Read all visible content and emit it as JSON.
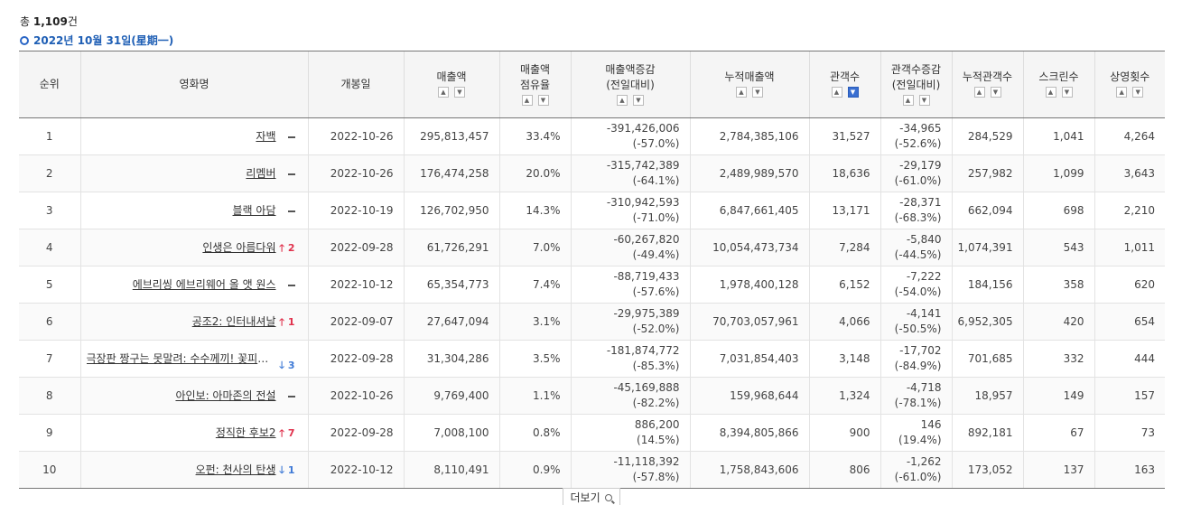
{
  "summary": {
    "prefix": "총 ",
    "count": "1,109",
    "suffix": "건"
  },
  "date": "2022년 10월 31일(星期一)",
  "headers": [
    {
      "label": "순위",
      "sort": false
    },
    {
      "label": "영화명",
      "sort": false
    },
    {
      "label": "개봉일",
      "sort": false
    },
    {
      "label": "매출액",
      "sort": true
    },
    {
      "label": "매출액\n점유율",
      "sort": true
    },
    {
      "label": "매출액증감\n(전일대비)",
      "sort": true
    },
    {
      "label": "누적매출액",
      "sort": true
    },
    {
      "label": "관객수",
      "sort": true,
      "active": "down"
    },
    {
      "label": "관객수증감\n(전일대비)",
      "sort": true
    },
    {
      "label": "누적관객수",
      "sort": true
    },
    {
      "label": "스크린수",
      "sort": true
    },
    {
      "label": "상영횟수",
      "sort": true
    }
  ],
  "rows": [
    {
      "rank": "1",
      "title": "자백",
      "trend": "same",
      "change": "",
      "date": "2022-10-26",
      "sales": "295,813,457",
      "share": "33.4%",
      "sales_diff": "-391,426,006",
      "sales_diff_pct": "(-57.0%)",
      "acc_sales": "2,784,385,106",
      "audience": "31,527",
      "aud_diff": "-34,965",
      "aud_diff_pct": "(-52.6%)",
      "acc_aud": "284,529",
      "screens": "1,041",
      "shows": "4,264"
    },
    {
      "rank": "2",
      "title": "리멤버",
      "trend": "same",
      "change": "",
      "date": "2022-10-26",
      "sales": "176,474,258",
      "share": "20.0%",
      "sales_diff": "-315,742,389",
      "sales_diff_pct": "(-64.1%)",
      "acc_sales": "2,489,989,570",
      "audience": "18,636",
      "aud_diff": "-29,179",
      "aud_diff_pct": "(-61.0%)",
      "acc_aud": "257,982",
      "screens": "1,099",
      "shows": "3,643"
    },
    {
      "rank": "3",
      "title": "블랙 아담",
      "trend": "same",
      "change": "",
      "date": "2022-10-19",
      "sales": "126,702,950",
      "share": "14.3%",
      "sales_diff": "-310,942,593",
      "sales_diff_pct": "(-71.0%)",
      "acc_sales": "6,847,661,405",
      "audience": "13,171",
      "aud_diff": "-28,371",
      "aud_diff_pct": "(-68.3%)",
      "acc_aud": "662,094",
      "screens": "698",
      "shows": "2,210"
    },
    {
      "rank": "4",
      "title": "인생은 아름다워",
      "trend": "up",
      "change": "2",
      "date": "2022-09-28",
      "sales": "61,726,291",
      "share": "7.0%",
      "sales_diff": "-60,267,820",
      "sales_diff_pct": "(-49.4%)",
      "acc_sales": "10,054,473,734",
      "audience": "7,284",
      "aud_diff": "-5,840",
      "aud_diff_pct": "(-44.5%)",
      "acc_aud": "1,074,391",
      "screens": "543",
      "shows": "1,011"
    },
    {
      "rank": "5",
      "title": "에브리씽 에브리웨어 올 앳 원스",
      "trend": "same",
      "change": "",
      "date": "2022-10-12",
      "sales": "65,354,773",
      "share": "7.4%",
      "sales_diff": "-88,719,433",
      "sales_diff_pct": "(-57.6%)",
      "acc_sales": "1,978,400,128",
      "audience": "6,152",
      "aud_diff": "-7,222",
      "aud_diff_pct": "(-54.0%)",
      "acc_aud": "184,156",
      "screens": "358",
      "shows": "620"
    },
    {
      "rank": "6",
      "title": "공조2: 인터내셔날",
      "trend": "up",
      "change": "1",
      "date": "2022-09-07",
      "sales": "27,647,094",
      "share": "3.1%",
      "sales_diff": "-29,975,389",
      "sales_diff_pct": "(-52.0%)",
      "acc_sales": "70,703,057,961",
      "audience": "4,066",
      "aud_diff": "-4,141",
      "aud_diff_pct": "(-50.5%)",
      "acc_aud": "6,952,305",
      "screens": "420",
      "shows": "654"
    },
    {
      "rank": "7",
      "title": "극장판 짱구는 못말려: 수수께끼! 꽃피는…",
      "trend": "down",
      "change": "3",
      "date": "2022-09-28",
      "sales": "31,304,286",
      "share": "3.5%",
      "sales_diff": "-181,874,772",
      "sales_diff_pct": "(-85.3%)",
      "acc_sales": "7,031,854,403",
      "audience": "3,148",
      "aud_diff": "-17,702",
      "aud_diff_pct": "(-84.9%)",
      "acc_aud": "701,685",
      "screens": "332",
      "shows": "444"
    },
    {
      "rank": "8",
      "title": "아인보: 아마존의 전설",
      "trend": "same",
      "change": "",
      "date": "2022-10-26",
      "sales": "9,769,400",
      "share": "1.1%",
      "sales_diff": "-45,169,888",
      "sales_diff_pct": "(-82.2%)",
      "acc_sales": "159,968,644",
      "audience": "1,324",
      "aud_diff": "-4,718",
      "aud_diff_pct": "(-78.1%)",
      "acc_aud": "18,957",
      "screens": "149",
      "shows": "157"
    },
    {
      "rank": "9",
      "title": "정직한 후보2",
      "trend": "up",
      "change": "7",
      "date": "2022-09-28",
      "sales": "7,008,100",
      "share": "0.8%",
      "sales_diff": "886,200",
      "sales_diff_pct": "(14.5%)",
      "acc_sales": "8,394,805,866",
      "audience": "900",
      "aud_diff": "146",
      "aud_diff_pct": "(19.4%)",
      "acc_aud": "892,181",
      "screens": "67",
      "shows": "73"
    },
    {
      "rank": "10",
      "title": "오펀: 천사의 탄생",
      "trend": "down",
      "change": "1",
      "date": "2022-10-12",
      "sales": "8,110,491",
      "share": "0.9%",
      "sales_diff": "-11,118,392",
      "sales_diff_pct": "(-57.8%)",
      "acc_sales": "1,758,843,606",
      "audience": "806",
      "aud_diff": "-1,262",
      "aud_diff_pct": "(-61.0%)",
      "acc_aud": "173,052",
      "screens": "137",
      "shows": "163"
    }
  ],
  "more_label": "더보기",
  "icons": {
    "more": "search-icon",
    "sort_up": "sort-asc-icon",
    "sort_down": "sort-desc-icon",
    "trend_up": "arrow-up-icon",
    "trend_down": "arrow-down-icon",
    "trend_same": "dash-icon"
  },
  "colors": {
    "accent": "#1f5fb5",
    "up": "#e0314c",
    "down": "#3f7ad6",
    "sort_active": "#3a6fd1"
  }
}
